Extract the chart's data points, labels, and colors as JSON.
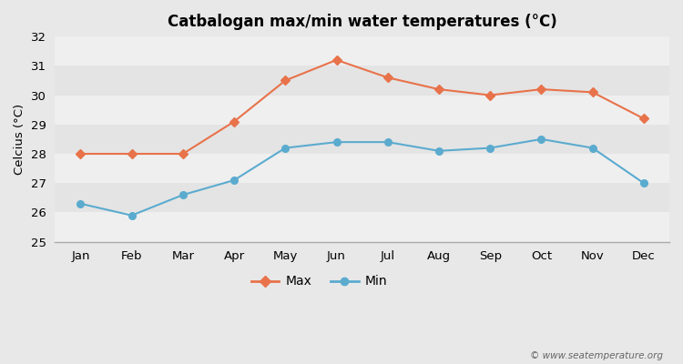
{
  "title": "Catbalogan max/min water temperatures (°C)",
  "ylabel": "Celcius (°C)",
  "months": [
    "Jan",
    "Feb",
    "Mar",
    "Apr",
    "May",
    "Jun",
    "Jul",
    "Aug",
    "Sep",
    "Oct",
    "Nov",
    "Dec"
  ],
  "max_temps": [
    28.0,
    28.0,
    28.0,
    29.1,
    30.5,
    31.2,
    30.6,
    30.2,
    30.0,
    30.2,
    30.1,
    29.2
  ],
  "min_temps": [
    26.3,
    25.9,
    26.6,
    27.1,
    28.2,
    28.4,
    28.4,
    28.1,
    28.2,
    28.5,
    28.2,
    27.0
  ],
  "max_color": "#e8724a",
  "min_color": "#5babcf",
  "bg_color": "#e8e8e8",
  "band_color_light": "#efefef",
  "band_color_dark": "#e4e4e4",
  "ylim": [
    25,
    32
  ],
  "yticks": [
    25,
    26,
    27,
    28,
    29,
    30,
    31,
    32
  ],
  "watermark": "© www.seatemperature.org",
  "legend_max": "Max",
  "legend_min": "Min"
}
